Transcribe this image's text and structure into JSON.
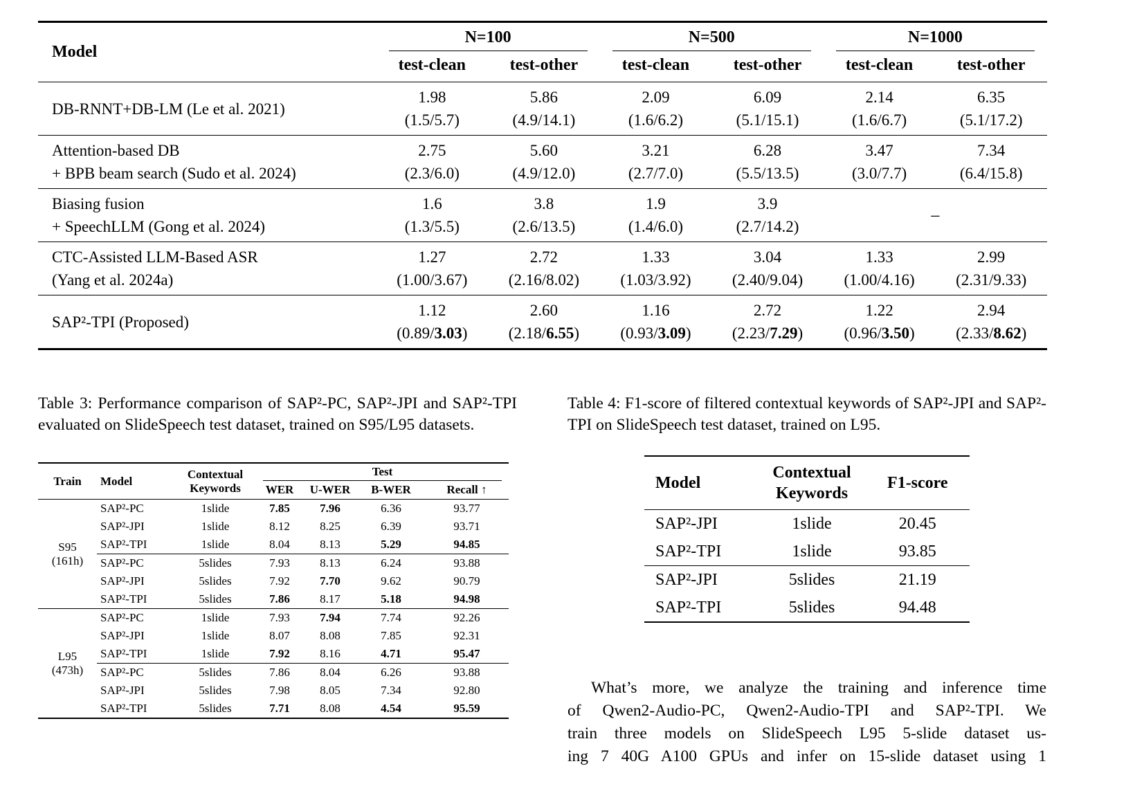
{
  "main_table": {
    "header": {
      "model_label": "Model",
      "groups": [
        {
          "label": "N=100"
        },
        {
          "label": "N=500"
        },
        {
          "label": "N=1000"
        }
      ],
      "subcolumns": [
        "test-clean",
        "test-other"
      ]
    },
    "rows": [
      {
        "model_lines": [
          "DB-RNNT+DB-LM (Le et al. 2021)"
        ],
        "cells": [
          {
            "line1": "1.98",
            "line2": "(1.5/5.7)"
          },
          {
            "line1": "5.86",
            "line2": "(4.9/14.1)"
          },
          {
            "line1": "2.09",
            "line2": "(1.6/6.2)"
          },
          {
            "line1": "6.09",
            "line2": "(5.1/15.1)"
          },
          {
            "line1": "2.14",
            "line2": "(1.6/6.7)"
          },
          {
            "line1": "6.35",
            "line2": "(5.1/17.2)"
          }
        ]
      },
      {
        "model_lines": [
          "Attention-based DB",
          "+ BPB beam search (Sudo et al. 2024)"
        ],
        "cells": [
          {
            "line1": "2.75",
            "line2": "(2.3/6.0)"
          },
          {
            "line1": "5.60",
            "line2": "(4.9/12.0)"
          },
          {
            "line1": "3.21",
            "line2": "(2.7/7.0)"
          },
          {
            "line1": "6.28",
            "line2": "(5.5/13.5)"
          },
          {
            "line1": "3.47",
            "line2": "(3.0/7.7)"
          },
          {
            "line1": "7.34",
            "line2": "(6.4/15.8)"
          }
        ]
      },
      {
        "model_lines": [
          "Biasing fusion",
          "+ SpeechLLM (Gong et al. 2024)"
        ],
        "cells": [
          {
            "line1": "1.6",
            "line2": "(1.3/5.5)"
          },
          {
            "line1": "3.8",
            "line2": "(2.6/13.5)"
          },
          {
            "line1": "1.9",
            "line2": "(1.4/6.0)"
          },
          {
            "line1": "3.9",
            "line2": "(2.7/14.2)"
          },
          {
            "line1": "–",
            "dash": true,
            "colspan": 2
          }
        ]
      },
      {
        "model_lines": [
          "CTC-Assisted LLM-Based ASR",
          "(Yang et al. 2024a)"
        ],
        "cells": [
          {
            "line1": "1.27",
            "line2": "(1.00/3.67)"
          },
          {
            "line1": "2.72",
            "line2": "(2.16/8.02)"
          },
          {
            "line1": "1.33",
            "line2": "(1.03/3.92)"
          },
          {
            "line1": "3.04",
            "line2": "(2.40/9.04)"
          },
          {
            "line1": "1.33",
            "line2": "(1.00/4.16)"
          },
          {
            "line1": "2.99",
            "line2": "(2.31/9.33)"
          }
        ]
      },
      {
        "model_lines": [
          "SAP²-TPI (Proposed)"
        ],
        "cells": [
          {
            "line1": "1.12",
            "line2": "(0.89/**3.03**)"
          },
          {
            "line1": "2.60",
            "line2": "(2.18/**6.55**)"
          },
          {
            "line1": "1.16",
            "line2": "(0.93/**3.09**)"
          },
          {
            "line1": "2.72",
            "line2": "(2.23/**7.29**)"
          },
          {
            "line1": "1.22",
            "line2": "(0.96/**3.50**)"
          },
          {
            "line1": "2.94",
            "line2": "(2.33/**8.62**)"
          }
        ]
      }
    ]
  },
  "table3": {
    "caption": "Table 3: Performance comparison of SAP²-PC, SAP²-JPI and SAP²-TPI evaluated on SlideSpeech test dataset, trained on S95/L95 datasets.",
    "headers": {
      "train": "Train",
      "model": "Model",
      "keywords": "Contextual\nKeywords",
      "test_group": "Test",
      "metrics": [
        "WER",
        "U-WER",
        "B-WER",
        "Recall ↑"
      ]
    },
    "groups": [
      {
        "train": "S95\n(161h)",
        "subgroups": [
          {
            "rows": [
              {
                "model": "SAP²-PC",
                "keywords": "1slide",
                "values": [
                  "**7.85**",
                  "**7.96**",
                  "6.36",
                  "93.77"
                ]
              },
              {
                "model": "SAP²-JPI",
                "keywords": "1slide",
                "values": [
                  "8.12",
                  "8.25",
                  "6.39",
                  "93.71"
                ]
              },
              {
                "model": "SAP²-TPI",
                "keywords": "1slide",
                "values": [
                  "8.04",
                  "8.13",
                  "**5.29**",
                  "**94.85**"
                ]
              }
            ]
          },
          {
            "rows": [
              {
                "model": "SAP²-PC",
                "keywords": "5slides",
                "values": [
                  "7.93",
                  "8.13",
                  "6.24",
                  "93.88"
                ]
              },
              {
                "model": "SAP²-JPI",
                "keywords": "5slides",
                "values": [
                  "7.92",
                  "**7.70**",
                  "9.62",
                  "90.79"
                ]
              },
              {
                "model": "SAP²-TPI",
                "keywords": "5slides",
                "values": [
                  "**7.86**",
                  "8.17",
                  "**5.18**",
                  "**94.98**"
                ]
              }
            ]
          }
        ]
      },
      {
        "train": "L95\n(473h)",
        "subgroups": [
          {
            "rows": [
              {
                "model": "SAP²-PC",
                "keywords": "1slide",
                "values": [
                  "7.93",
                  "**7.94**",
                  "7.74",
                  "92.26"
                ]
              },
              {
                "model": "SAP²-JPI",
                "keywords": "1slide",
                "values": [
                  "8.07",
                  "8.08",
                  "7.85",
                  "92.31"
                ]
              },
              {
                "model": "SAP²-TPI",
                "keywords": "1slide",
                "values": [
                  "**7.92**",
                  "8.16",
                  "**4.71**",
                  "**95.47**"
                ]
              }
            ]
          },
          {
            "rows": [
              {
                "model": "SAP²-PC",
                "keywords": "5slides",
                "values": [
                  "7.86",
                  "8.04",
                  "6.26",
                  "93.88"
                ]
              },
              {
                "model": "SAP²-JPI",
                "keywords": "5slides",
                "values": [
                  "7.98",
                  "8.05",
                  "7.34",
                  "92.80"
                ]
              },
              {
                "model": "SAP²-TPI",
                "keywords": "5slides",
                "values": [
                  "**7.71**",
                  "8.08",
                  "**4.54**",
                  "**95.59**"
                ]
              }
            ]
          }
        ]
      }
    ]
  },
  "table4": {
    "caption": "Table 4: F1-score of filtered contextual keywords of SAP²-JPI and SAP²-TPI on SlideSpeech test dataset, trained on L95.",
    "headers": {
      "model": "Model",
      "keywords": "Contextual\nKeywords",
      "f1": "F1-score"
    },
    "groups": [
      {
        "rows": [
          {
            "model": "SAP²-JPI",
            "keywords": "1slide",
            "f1": "20.45"
          },
          {
            "model": "SAP²-TPI",
            "keywords": "1slide",
            "f1": "93.85"
          }
        ]
      },
      {
        "rows": [
          {
            "model": "SAP²-JPI",
            "keywords": "5slides",
            "f1": "21.19"
          },
          {
            "model": "SAP²-TPI",
            "keywords": "5slides",
            "f1": "94.48"
          }
        ]
      }
    ]
  },
  "body_text": {
    "lines": [
      "What’s more, we analyze the training and inference time",
      "of Qwen2-Audio-PC, Qwen2-Audio-TPI and SAP²-TPI. We",
      "train three models on SlideSpeech L95 5-slide dataset us-",
      "ing 7 40G A100 GPUs and infer on 15-slide dataset using 1"
    ]
  }
}
